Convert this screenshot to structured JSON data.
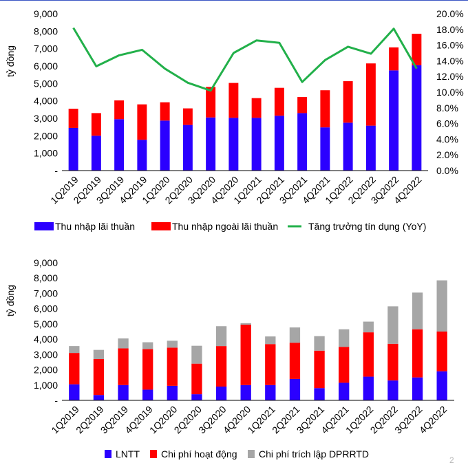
{
  "chart_data": [
    {
      "type": "bar",
      "stacked": true,
      "categories": [
        "1Q2019",
        "2Q2019",
        "3Q2019",
        "4Q2019",
        "1Q2020",
        "2Q2020",
        "3Q2020",
        "4Q2020",
        "1Q2021",
        "2Q2021",
        "3Q2021",
        "4Q2021",
        "1Q2022",
        "2Q2022",
        "3Q2022",
        "4Q2022"
      ],
      "ylabel": "tỷ đồng",
      "ylim": [
        0,
        9000
      ],
      "yticks": [
        "-",
        "1,000",
        "2,000",
        "3,000",
        "4,000",
        "5,000",
        "6,000",
        "7,000",
        "8,000",
        "9,000"
      ],
      "y2lim": [
        0,
        20
      ],
      "y2ticks": [
        "0.0%",
        "2.0%",
        "4.0%",
        "6.0%",
        "8.0%",
        "10.0%",
        "12.0%",
        "14.0%",
        "16.0%",
        "18.0%",
        "20.0%"
      ],
      "series": [
        {
          "name": "Thu nhập lãi thuần",
          "kind": "bar",
          "color": "#2b00ff",
          "values": [
            2450,
            2000,
            2950,
            1770,
            2870,
            2620,
            3050,
            3030,
            3030,
            3150,
            3300,
            2480,
            2750,
            2580,
            5750,
            6050
          ]
        },
        {
          "name": "Thu nhập ngoài lãi thuần",
          "kind": "bar",
          "color": "#ff0000",
          "values": [
            1100,
            1300,
            1080,
            2030,
            1050,
            950,
            1750,
            2000,
            1130,
            1600,
            920,
            2130,
            2380,
            3570,
            1320,
            1800
          ]
        },
        {
          "name": "Tăng trưởng tín dụng (YoY)",
          "kind": "line",
          "axis": "right",
          "color": "#22b04a",
          "values": [
            18.2,
            13.3,
            14.7,
            15.4,
            13.0,
            11.2,
            10.2,
            15.0,
            16.6,
            16.3,
            11.3,
            14.1,
            15.8,
            14.9,
            18.1,
            13.0
          ]
        }
      ]
    },
    {
      "type": "bar",
      "stacked": true,
      "categories": [
        "1Q2019",
        "2Q2019",
        "3Q2019",
        "4Q2019",
        "1Q2020",
        "2Q2020",
        "3Q2020",
        "4Q2020",
        "1Q2021",
        "2Q2021",
        "3Q2021",
        "4Q2021",
        "1Q2022",
        "2Q2022",
        "3Q2022",
        "4Q2022"
      ],
      "ylabel": "tỷ đồng",
      "ylim": [
        0,
        9000
      ],
      "yticks": [
        "-",
        "1,000",
        "2,000",
        "3,000",
        "4,000",
        "5,000",
        "6,000",
        "7,000",
        "8,000",
        "9,000"
      ],
      "series": [
        {
          "name": "LNTT",
          "kind": "bar",
          "color": "#2b00ff",
          "values": [
            1050,
            350,
            1000,
            700,
            950,
            400,
            900,
            1000,
            1000,
            1400,
            800,
            1150,
            1550,
            1300,
            1500,
            1900
          ]
        },
        {
          "name": "Chi phí hoạt động",
          "kind": "bar",
          "color": "#ff0000",
          "values": [
            2050,
            2350,
            2400,
            2650,
            2500,
            2000,
            2650,
            3950,
            2680,
            2370,
            2450,
            2350,
            2900,
            2400,
            3150,
            2600
          ]
        },
        {
          "name": "Chi phí trích lập DPRRTD",
          "kind": "bar",
          "color": "#a6a6a6",
          "values": [
            450,
            600,
            650,
            450,
            450,
            1170,
            1300,
            100,
            500,
            1000,
            950,
            1150,
            700,
            2450,
            2400,
            3350
          ]
        }
      ]
    }
  ],
  "page_marker": "2"
}
